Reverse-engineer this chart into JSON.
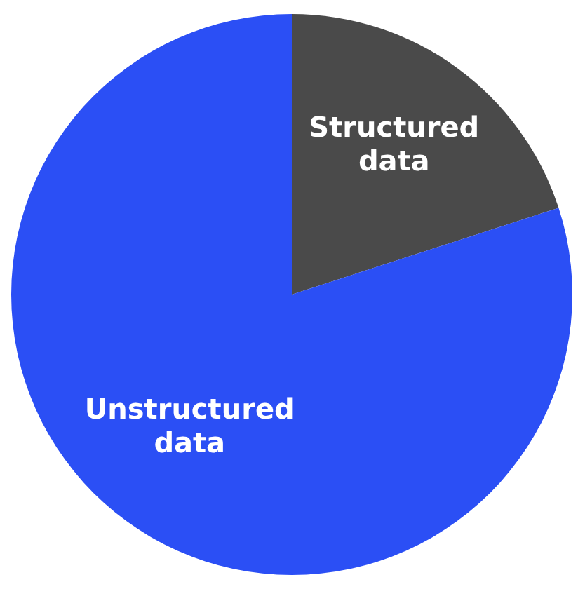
{
  "chart_data": {
    "type": "pie",
    "categories": [
      "Structured data",
      "Unstructured data"
    ],
    "values": [
      20,
      80
    ],
    "colors": [
      "#4a4a4a",
      "#2b4ff5"
    ]
  }
}
